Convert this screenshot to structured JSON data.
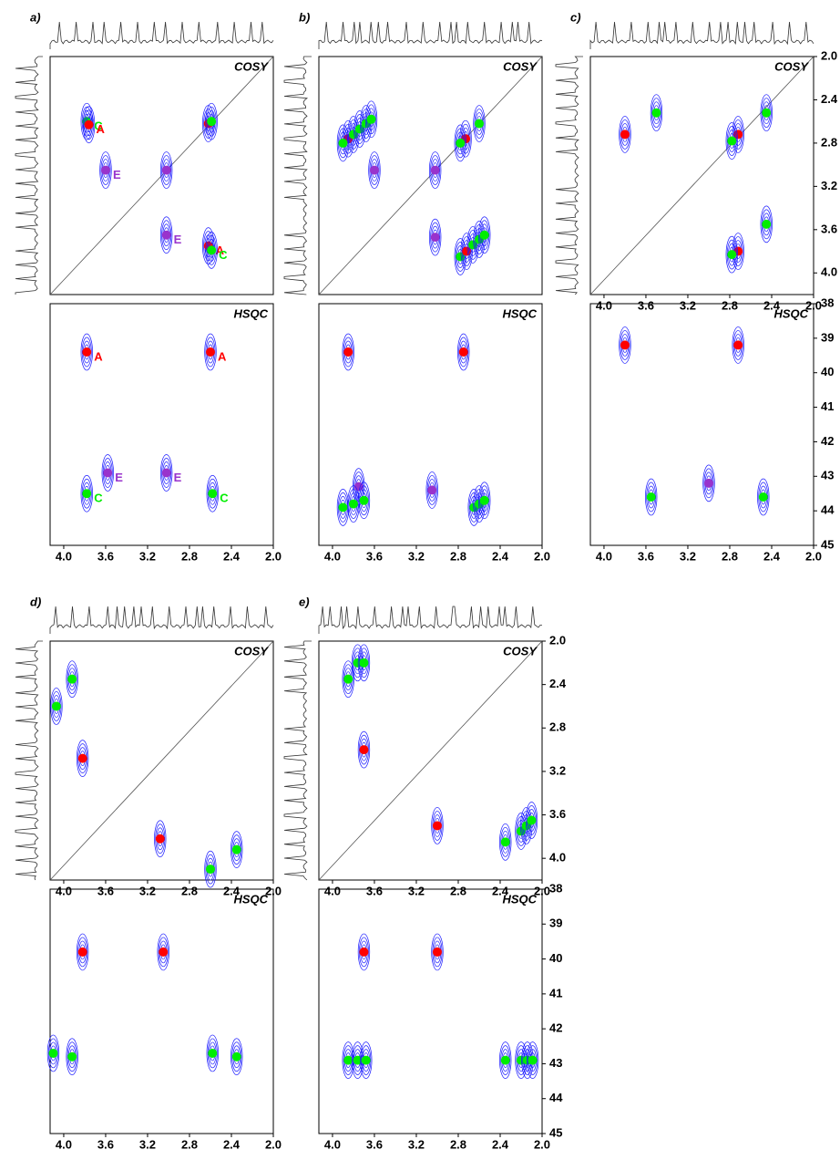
{
  "chart_data": {
    "type": "nmr2d",
    "x_axis": {
      "lim": [
        4.13,
        2.0
      ],
      "ticks": [
        {
          "value": 4,
          "label": "4.0"
        },
        3.6,
        3.2,
        2.8,
        2.4,
        {
          "value": 2,
          "label": "2.0"
        }
      ]
    },
    "cosy_y_axis": {
      "lim": [
        2.0,
        4.2
      ],
      "ticks": [
        {
          "value": 2,
          "label": "2.0"
        },
        2.4,
        2.8,
        3.2,
        3.6,
        {
          "value": 4,
          "label": "4.0"
        }
      ]
    },
    "hsqc_y_axis": {
      "lim": [
        38,
        45
      ],
      "ticks": [
        38,
        39,
        40,
        41,
        42,
        43,
        44,
        45
      ]
    },
    "panels": [
      {
        "label": "a)",
        "cosy_title": "COSY",
        "hsqc_title": "HSQC",
        "cosy_x_ticks": false,
        "y_ticks": false,
        "cosy_peaks": [
          {
            "x": 3.78,
            "y": 2.6,
            "color": "#00ee00",
            "label": "C"
          },
          {
            "x": 3.76,
            "y": 2.63,
            "color": "#ff0000",
            "label": "A"
          },
          {
            "x": 3.6,
            "y": 3.05,
            "color": "#9933cc",
            "label": "E"
          },
          {
            "x": 3.02,
            "y": 3.05,
            "color": "#9933cc"
          },
          {
            "x": 3.02,
            "y": 3.65,
            "color": "#9933cc",
            "label": "E"
          },
          {
            "x": 2.62,
            "y": 3.75,
            "color": "#ff0000",
            "label": "A"
          },
          {
            "x": 2.59,
            "y": 3.79,
            "color": "#00ee00",
            "label": "C"
          },
          {
            "x": 2.62,
            "y": 2.62,
            "color": "#ff0000"
          },
          {
            "x": 2.59,
            "y": 2.6,
            "color": "#00ee00"
          }
        ],
        "hsqc_peaks": [
          {
            "x": 3.78,
            "y": 39.4,
            "color": "#ff0000",
            "label": "A"
          },
          {
            "x": 2.6,
            "y": 39.4,
            "color": "#ff0000",
            "label": "A"
          },
          {
            "x": 3.58,
            "y": 42.9,
            "color": "#9933cc",
            "label": "E"
          },
          {
            "x": 3.02,
            "y": 42.9,
            "color": "#9933cc",
            "label": "E"
          },
          {
            "x": 3.78,
            "y": 43.5,
            "color": "#00ee00",
            "label": "C"
          },
          {
            "x": 2.58,
            "y": 43.5,
            "color": "#00ee00",
            "label": "C"
          }
        ]
      },
      {
        "label": "b)",
        "cosy_title": "COSY",
        "hsqc_title": "HSQC",
        "cosy_x_ticks": false,
        "y_ticks": false,
        "cosy_peaks": [
          {
            "x": 3.85,
            "y": 2.76,
            "color": "#ff0000"
          },
          {
            "x": 3.9,
            "y": 2.8,
            "color": "#00ee00"
          },
          {
            "x": 3.8,
            "y": 2.72,
            "color": "#00ee00"
          },
          {
            "x": 3.74,
            "y": 2.67,
            "color": "#00ee00"
          },
          {
            "x": 3.68,
            "y": 2.62,
            "color": "#00ee00"
          },
          {
            "x": 3.63,
            "y": 2.58,
            "color": "#00ee00"
          },
          {
            "x": 3.6,
            "y": 3.05,
            "color": "#9933cc"
          },
          {
            "x": 3.02,
            "y": 3.05,
            "color": "#9933cc"
          },
          {
            "x": 3.02,
            "y": 3.67,
            "color": "#9933cc"
          },
          {
            "x": 2.73,
            "y": 2.76,
            "color": "#ff0000"
          },
          {
            "x": 2.78,
            "y": 2.8,
            "color": "#00ee00"
          },
          {
            "x": 2.6,
            "y": 2.62,
            "color": "#00ee00"
          },
          {
            "x": 2.78,
            "y": 3.85,
            "color": "#00ee00"
          },
          {
            "x": 2.72,
            "y": 3.8,
            "color": "#ff0000"
          },
          {
            "x": 2.66,
            "y": 3.74,
            "color": "#00ee00"
          },
          {
            "x": 2.6,
            "y": 3.69,
            "color": "#00ee00"
          },
          {
            "x": 2.55,
            "y": 3.65,
            "color": "#00ee00"
          }
        ],
        "hsqc_peaks": [
          {
            "x": 3.85,
            "y": 39.4,
            "color": "#ff0000"
          },
          {
            "x": 2.75,
            "y": 39.4,
            "color": "#ff0000"
          },
          {
            "x": 3.05,
            "y": 43.4,
            "color": "#9933cc"
          },
          {
            "x": 3.75,
            "y": 43.3,
            "color": "#9933cc"
          },
          {
            "x": 3.9,
            "y": 43.9,
            "color": "#00ee00"
          },
          {
            "x": 3.8,
            "y": 43.8,
            "color": "#00ee00"
          },
          {
            "x": 3.7,
            "y": 43.7,
            "color": "#00ee00"
          },
          {
            "x": 2.65,
            "y": 43.9,
            "color": "#00ee00"
          },
          {
            "x": 2.6,
            "y": 43.8,
            "color": "#00ee00"
          },
          {
            "x": 2.55,
            "y": 43.7,
            "color": "#00ee00"
          }
        ]
      },
      {
        "label": "c)",
        "cosy_title": "COSY",
        "hsqc_title": "HSQC",
        "cosy_x_ticks": true,
        "y_ticks": true,
        "cosy_peaks": [
          {
            "x": 3.8,
            "y": 2.72,
            "color": "#ff0000"
          },
          {
            "x": 2.72,
            "y": 2.72,
            "color": "#ff0000"
          },
          {
            "x": 2.72,
            "y": 3.8,
            "color": "#ff0000"
          },
          {
            "x": 3.5,
            "y": 2.52,
            "color": "#00ee00"
          },
          {
            "x": 2.45,
            "y": 2.52,
            "color": "#00ee00"
          },
          {
            "x": 2.45,
            "y": 3.55,
            "color": "#00ee00"
          },
          {
            "x": 2.78,
            "y": 2.78,
            "color": "#00ee00"
          },
          {
            "x": 2.78,
            "y": 3.83,
            "color": "#00ee00"
          }
        ],
        "hsqc_peaks": [
          {
            "x": 3.8,
            "y": 39.2,
            "color": "#ff0000"
          },
          {
            "x": 2.72,
            "y": 39.2,
            "color": "#ff0000"
          },
          {
            "x": 3.0,
            "y": 43.2,
            "color": "#9933cc"
          },
          {
            "x": 3.55,
            "y": 43.6,
            "color": "#00ee00"
          },
          {
            "x": 2.48,
            "y": 43.6,
            "color": "#00ee00"
          }
        ]
      },
      {
        "label": "d)",
        "cosy_title": "COSY",
        "hsqc_title": "HSQC",
        "cosy_x_ticks": true,
        "y_ticks": false,
        "cosy_peaks": [
          {
            "x": 4.07,
            "y": 2.6,
            "color": "#00ee00"
          },
          {
            "x": 3.92,
            "y": 2.35,
            "color": "#00ee00"
          },
          {
            "x": 3.82,
            "y": 3.08,
            "color": "#ff0000"
          },
          {
            "x": 3.08,
            "y": 3.82,
            "color": "#ff0000"
          },
          {
            "x": 2.35,
            "y": 3.92,
            "color": "#00ee00"
          },
          {
            "x": 2.6,
            "y": 4.1,
            "color": "#00ee00"
          }
        ],
        "hsqc_peaks": [
          {
            "x": 3.82,
            "y": 39.8,
            "color": "#ff0000"
          },
          {
            "x": 3.05,
            "y": 39.8,
            "color": "#ff0000"
          },
          {
            "x": 4.1,
            "y": 42.7,
            "color": "#00ee00"
          },
          {
            "x": 3.92,
            "y": 42.8,
            "color": "#00ee00"
          },
          {
            "x": 2.58,
            "y": 42.7,
            "color": "#00ee00"
          },
          {
            "x": 2.35,
            "y": 42.8,
            "color": "#00ee00"
          }
        ]
      },
      {
        "label": "e)",
        "cosy_title": "COSY",
        "hsqc_title": "HSQC",
        "cosy_x_ticks": true,
        "y_ticks": true,
        "cosy_peaks": [
          {
            "x": 3.85,
            "y": 2.35,
            "color": "#00ee00"
          },
          {
            "x": 3.76,
            "y": 2.2,
            "color": "#00ee00"
          },
          {
            "x": 3.7,
            "y": 2.2,
            "color": "#00ee00"
          },
          {
            "x": 3.7,
            "y": 3.0,
            "color": "#ff0000"
          },
          {
            "x": 3.0,
            "y": 3.7,
            "color": "#ff0000"
          },
          {
            "x": 2.35,
            "y": 3.85,
            "color": "#00ee00"
          },
          {
            "x": 2.2,
            "y": 3.75,
            "color": "#00ee00"
          },
          {
            "x": 2.15,
            "y": 3.7,
            "color": "#00ee00"
          },
          {
            "x": 2.1,
            "y": 3.65,
            "color": "#00ee00"
          }
        ],
        "hsqc_peaks": [
          {
            "x": 3.7,
            "y": 39.8,
            "color": "#ff0000"
          },
          {
            "x": 3.0,
            "y": 39.8,
            "color": "#ff0000"
          },
          {
            "x": 3.85,
            "y": 42.9,
            "color": "#00ee00"
          },
          {
            "x": 3.76,
            "y": 42.9,
            "color": "#00ee00"
          },
          {
            "x": 3.68,
            "y": 42.9,
            "color": "#00ee00"
          },
          {
            "x": 2.35,
            "y": 42.9,
            "color": "#00ee00"
          },
          {
            "x": 2.2,
            "y": 42.9,
            "color": "#00ee00"
          },
          {
            "x": 2.14,
            "y": 42.9,
            "color": "#00ee00"
          },
          {
            "x": 2.09,
            "y": 42.9,
            "color": "#00ee00"
          }
        ]
      }
    ]
  }
}
